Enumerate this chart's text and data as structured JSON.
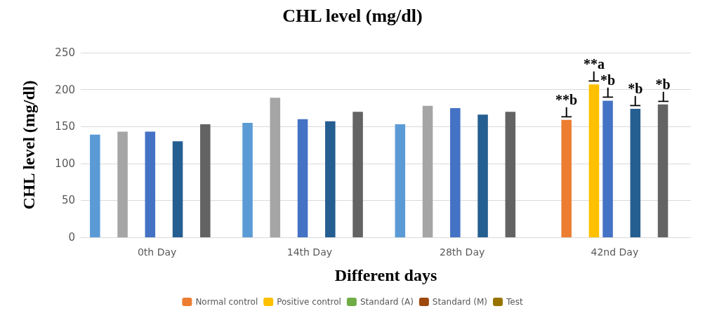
{
  "chart_data": {
    "type": "bar",
    "title": "CHL level (mg/dl)",
    "xlabel": "Different days",
    "ylabel": "CHL level (mg/dl)",
    "categories": [
      "0th Day",
      "14th Day",
      "28th Day",
      "42nd Day"
    ],
    "series": [
      {
        "color": "#5b9bd5",
        "values": [
          139,
          155,
          153,
          null
        ]
      },
      {
        "name": "Normal control",
        "color": "#ed7d31",
        "values": [
          null,
          null,
          null,
          159
        ],
        "value_labels": [
          null,
          null,
          null,
          "**b\n⊥"
        ]
      },
      {
        "color": "#a5a5a5",
        "values": [
          143,
          189,
          178,
          null
        ]
      },
      {
        "name": "Positive control",
        "color": "#ffc000",
        "values": [
          null,
          null,
          null,
          207
        ],
        "value_labels": [
          null,
          null,
          null,
          "**a\n⊥"
        ]
      },
      {
        "color": "#4472c4",
        "values": [
          143,
          160,
          175,
          185
        ],
        "value_labels": [
          null,
          null,
          null,
          "*b\n⊥"
        ]
      },
      {
        "name": "Standard (A)",
        "color": "#70ad47",
        "values": [
          null,
          null,
          null,
          null
        ]
      },
      {
        "color": "#255e91",
        "values": [
          130,
          157,
          166,
          174
        ],
        "value_labels": [
          null,
          null,
          null,
          "*b\n⊥"
        ]
      },
      {
        "name": "Standard (M)",
        "color": "#9e480e",
        "values": [
          null,
          null,
          null,
          null
        ]
      },
      {
        "color": "#636363",
        "values": [
          153,
          170,
          170,
          180
        ],
        "value_labels": [
          null,
          null,
          null,
          "*b\n⊥"
        ]
      },
      {
        "name": "Test",
        "color": "#997300",
        "values": [
          null,
          null,
          null,
          null
        ]
      }
    ],
    "ylim": [
      0,
      250
    ],
    "yticks": [
      0,
      50,
      100,
      150,
      200,
      250
    ],
    "grid": "y",
    "legend": "bottom"
  }
}
